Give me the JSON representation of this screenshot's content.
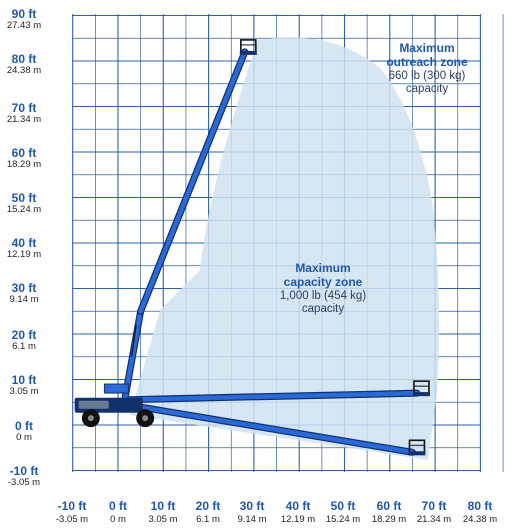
{
  "y_axis": {
    "labels": [
      {
        "ft": "90 ft",
        "m": "27.43 m"
      },
      {
        "ft": "80 ft",
        "m": "24.38 m"
      },
      {
        "ft": "70 ft",
        "m": "21.34 m"
      },
      {
        "ft": "60 ft",
        "m": "18.29 m"
      },
      {
        "ft": "50 ft",
        "m": "15.24 m"
      },
      {
        "ft": "40 ft",
        "m": "12.19 m"
      },
      {
        "ft": "30 ft",
        "m": "9.14 m"
      },
      {
        "ft": "20 ft",
        "m": "6.1 m"
      },
      {
        "ft": "10 ft",
        "m": "3.05 m"
      },
      {
        "ft": "0 ft",
        "m": "0 m"
      },
      {
        "ft": "-10 ft",
        "m": "-3.05 m"
      }
    ]
  },
  "x_axis": {
    "labels": [
      {
        "ft": "-10 ft",
        "m": "-3.05 m"
      },
      {
        "ft": "0 ft",
        "m": "0 m"
      },
      {
        "ft": "10 ft",
        "m": "3.05 m"
      },
      {
        "ft": "20 ft",
        "m": "6.1 m"
      },
      {
        "ft": "30 ft",
        "m": "9.14 m"
      },
      {
        "ft": "40 ft",
        "m": "12.19 m"
      },
      {
        "ft": "50 ft",
        "m": "15.24 m"
      },
      {
        "ft": "60 ft",
        "m": "18.29 m"
      },
      {
        "ft": "70 ft",
        "m": "21.34 m"
      },
      {
        "ft": "80 ft",
        "m": "24.38 m"
      }
    ]
  },
  "zones": {
    "outreach": {
      "line1": "Maximum",
      "line2": "outreach zone",
      "capacity": "660 lb (300 kg)",
      "capacity_label": "capacity"
    },
    "capacity": {
      "line1": "Maximum",
      "line2": "capacity zone",
      "capacity": "1,000 lb (454 kg)",
      "capacity_label": "capacity"
    }
  },
  "colors": {
    "grid": "#2d5fb0",
    "boom": "#2a6ad8",
    "boom_dark": "#12306a",
    "zone_fill": "#cfe2f1",
    "label_blue": "#1f57b0"
  },
  "boom_positions_ft": {
    "max_height": [
      28,
      82
    ],
    "horizontal": [
      66,
      7
    ],
    "below_grade": [
      65,
      -6
    ]
  }
}
